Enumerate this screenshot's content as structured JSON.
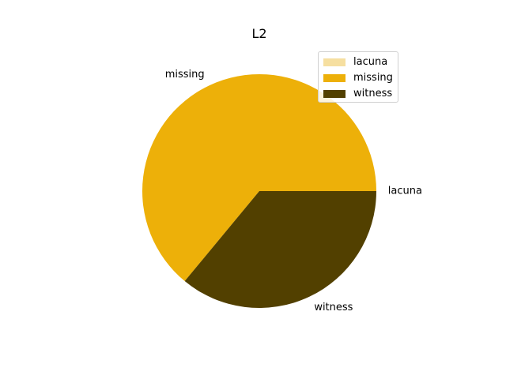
{
  "chart_data": {
    "type": "pie",
    "title": "L2",
    "start_angle_deg": 0,
    "direction": "counterclockwise",
    "slices": [
      {
        "label": "lacuna",
        "value": 0,
        "color": "#f6dfa0"
      },
      {
        "label": "missing",
        "value": 64,
        "color": "#edb009"
      },
      {
        "label": "witness",
        "value": 36,
        "color": "#524000"
      }
    ],
    "legend": {
      "placement": "top-right",
      "entries": [
        "lacuna",
        "missing",
        "witness"
      ]
    }
  }
}
